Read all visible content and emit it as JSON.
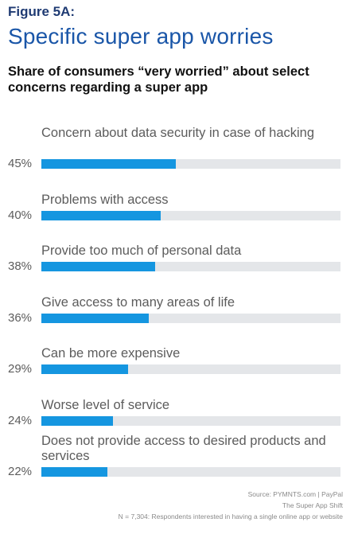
{
  "header": {
    "figure_label": "Figure 5A:",
    "title": "Specific super app worries",
    "subtitle": "Share of consumers “very worried” about select concerns regarding a super app"
  },
  "chart_data": {
    "type": "bar",
    "orientation": "horizontal",
    "title": "Specific super app worries",
    "subtitle": "Share of consumers “very worried” about select concerns regarding a super app",
    "categories": [
      "Concern about data security in case of hacking",
      "Problems with access",
      "Provide too much of personal data",
      "Give access to many areas of life",
      "Can be more expensive",
      "Worse level of service",
      "Does not provide access to desired products and services"
    ],
    "values": [
      45,
      40,
      38,
      36,
      29,
      24,
      22
    ],
    "value_labels": [
      "45%",
      "40%",
      "38%",
      "36%",
      "29%",
      "24%",
      "22%"
    ],
    "xlim": [
      0,
      100
    ],
    "unit": "%",
    "grid": false,
    "legend": "none",
    "colors": {
      "bar": "#1596e0",
      "track": "#e4e6e9"
    }
  },
  "footer": {
    "source": "Source: PYMNTS.com | PayPal",
    "report": "The Super App Shift",
    "note": "N = 7,304: Respondents interested in having a single online app or website"
  }
}
